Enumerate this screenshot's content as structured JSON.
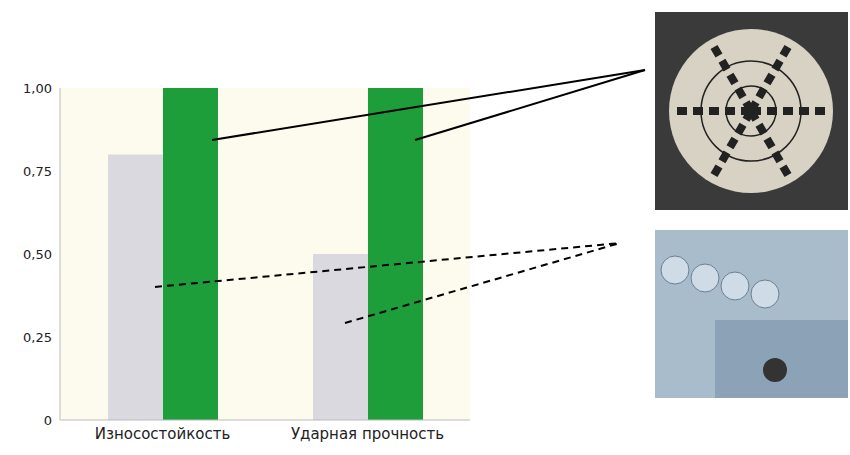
{
  "chart_data": {
    "type": "bar",
    "categories": [
      "Износостойкость",
      "Ударная прочность"
    ],
    "series": [
      {
        "color": "#d9d9df",
        "values": [
          0.8,
          0.5
        ]
      },
      {
        "color": "#1e9e3a",
        "values": [
          1.0,
          1.0
        ]
      }
    ],
    "ylim": [
      0,
      1
    ],
    "yticks": [
      0,
      {
        "value": 0.25,
        "label": "0,25"
      },
      {
        "value": 0.5,
        "label": "0,50"
      },
      {
        "value": 0.75,
        "label": "0,75"
      },
      {
        "value": 1,
        "label": "1,00"
      }
    ],
    "grid": false
  }
}
